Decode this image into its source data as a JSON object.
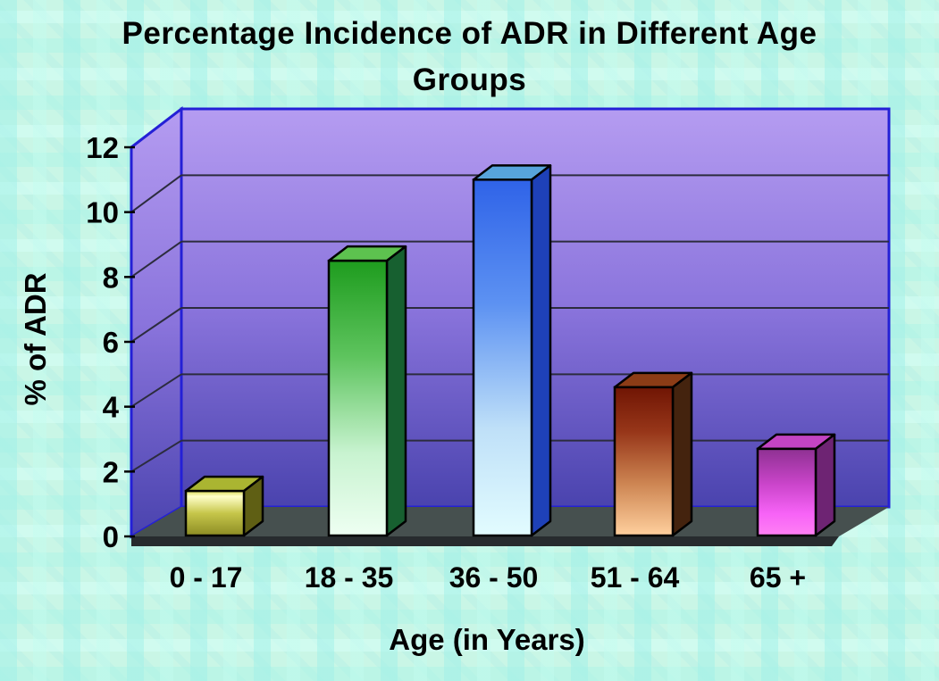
{
  "title_lines": [
    "Percentage Incidence of ADR in Different Age",
    "Groups"
  ],
  "chart_data": {
    "type": "bar",
    "projection": "3d",
    "title": "Percentage Incidence of ADR in Different Age Groups",
    "xlabel": "Age (in Years)",
    "ylabel": "% of ADR",
    "categories": [
      "0 - 17",
      "18 - 35",
      "36 - 50",
      "51 - 64",
      "65 +"
    ],
    "values": [
      1.4,
      8.5,
      11,
      4.6,
      2.7
    ],
    "ylim": [
      0,
      12
    ],
    "y_ticks": [
      0,
      2,
      4,
      6,
      8,
      10,
      12
    ],
    "grid": true,
    "legend": false,
    "bars": [
      {
        "category": "0 - 17",
        "value": 1.4,
        "front_stops": [
          [
            0,
            "#d9d955"
          ],
          [
            12,
            "#ffffca"
          ],
          [
            50,
            "#c6c64a"
          ],
          [
            100,
            "#8c8c24"
          ]
        ],
        "side": "#5f5f14",
        "top": "#aab531"
      },
      {
        "category": "18 - 35",
        "value": 8.5,
        "front_stops": [
          [
            0,
            "#1e9c1e"
          ],
          [
            35,
            "#5ec45e"
          ],
          [
            70,
            "#c8f3d0"
          ],
          [
            100,
            "#eefff2"
          ]
        ],
        "side": "#176030",
        "top": "#5dc24f"
      },
      {
        "category": "36 - 50",
        "value": 11,
        "front_stops": [
          [
            0,
            "#2f63e8"
          ],
          [
            35,
            "#5d92f2"
          ],
          [
            70,
            "#bfe0f8"
          ],
          [
            100,
            "#e2fcff"
          ]
        ],
        "side": "#1e41b8",
        "top": "#57a4dc"
      },
      {
        "category": "51 - 64",
        "value": 4.6,
        "front_stops": [
          [
            0,
            "#701504"
          ],
          [
            30,
            "#973619"
          ],
          [
            65,
            "#cd8552"
          ],
          [
            100,
            "#ffd09e"
          ]
        ],
        "side": "#44230e",
        "top": "#8c3c16"
      },
      {
        "category": "65 +",
        "value": 2.7,
        "front_stops": [
          [
            0,
            "#8e3192"
          ],
          [
            40,
            "#c944c9"
          ],
          [
            75,
            "#f763f7"
          ],
          [
            100,
            "#ff80f4"
          ]
        ],
        "side": "#6e2473",
        "top": "#c344c3"
      }
    ]
  },
  "colors": {
    "background": "#c9f6e6",
    "wall_gradient_top": "#b59cf1",
    "wall_gradient_mid": "#8a74dc",
    "wall_gradient_bottom": "#4a43ae",
    "wall_border": "#2420d6",
    "floor": "#46504f",
    "floor_front_edge": "#272b2e",
    "gridline": "#2c2c3e",
    "bar_outline": "#000000",
    "text": "#000000"
  }
}
